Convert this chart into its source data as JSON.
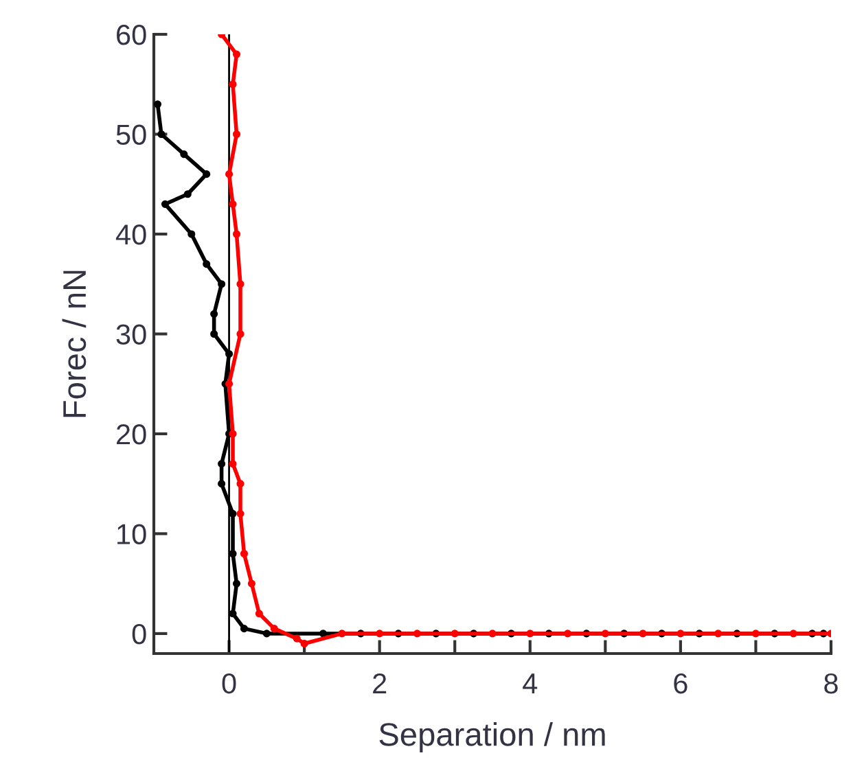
{
  "chart_data": {
    "type": "line",
    "xlabel": "Separation / nm",
    "ylabel": "Forec / nN",
    "xlim": [
      -1,
      8
    ],
    "ylim": [
      -2,
      60
    ],
    "xticks": [
      0,
      {
        "value": 1,
        "label": null
      },
      2,
      {
        "value": 3,
        "label": null
      },
      4,
      {
        "value": 5,
        "label": null
      },
      6,
      {
        "value": 7,
        "label": null
      },
      8
    ],
    "yticks": [
      0,
      10,
      20,
      30,
      40,
      50,
      60
    ],
    "grid": false,
    "legend": false,
    "marker": "circle",
    "line_style": "solid",
    "ref_lines": [
      {
        "axis": "x",
        "value": 0,
        "color": "#000000"
      }
    ],
    "series": [
      {
        "color": "#000000",
        "x": [
          -0.95,
          -0.9,
          -0.6,
          -0.3,
          -0.55,
          -0.85,
          -0.5,
          -0.3,
          -0.1,
          -0.2,
          -0.2,
          0.0,
          -0.05,
          0.0,
          -0.1,
          -0.1,
          0.05,
          0.05,
          0.1,
          0.05,
          0.2,
          0.5,
          1.25,
          1.75,
          2.25,
          2.75,
          3.25,
          3.75,
          4.25,
          4.75,
          5.25,
          5.75,
          6.25,
          6.75,
          7.25,
          7.75,
          7.9
        ],
        "values": [
          53,
          50,
          48,
          46,
          44,
          43,
          40,
          37,
          35,
          32,
          30,
          28,
          25,
          20,
          17,
          15,
          12,
          8,
          5,
          2,
          0.5,
          0,
          0,
          0,
          0,
          0,
          0,
          0,
          0,
          0,
          0,
          0,
          0,
          0,
          0,
          0,
          0
        ]
      },
      {
        "color": "#ff0000",
        "x": [
          -0.1,
          0.1,
          0.05,
          0.1,
          0.0,
          0.05,
          0.1,
          0.15,
          0.15,
          0.0,
          0.05,
          0.05,
          0.15,
          0.15,
          0.2,
          0.3,
          0.4,
          0.6,
          0.9,
          1.0,
          1.5,
          2,
          2.5,
          3,
          3.5,
          4,
          4.5,
          5,
          5.5,
          6,
          6.5,
          7,
          7.5,
          8
        ],
        "values": [
          60,
          58,
          55,
          50,
          46,
          43,
          40,
          35,
          30,
          25,
          20,
          17,
          15,
          12,
          8,
          5,
          2,
          0.5,
          -0.5,
          -1,
          0,
          0,
          0,
          0,
          0,
          0,
          0,
          0,
          0,
          0,
          0,
          0,
          0,
          0
        ]
      }
    ]
  }
}
